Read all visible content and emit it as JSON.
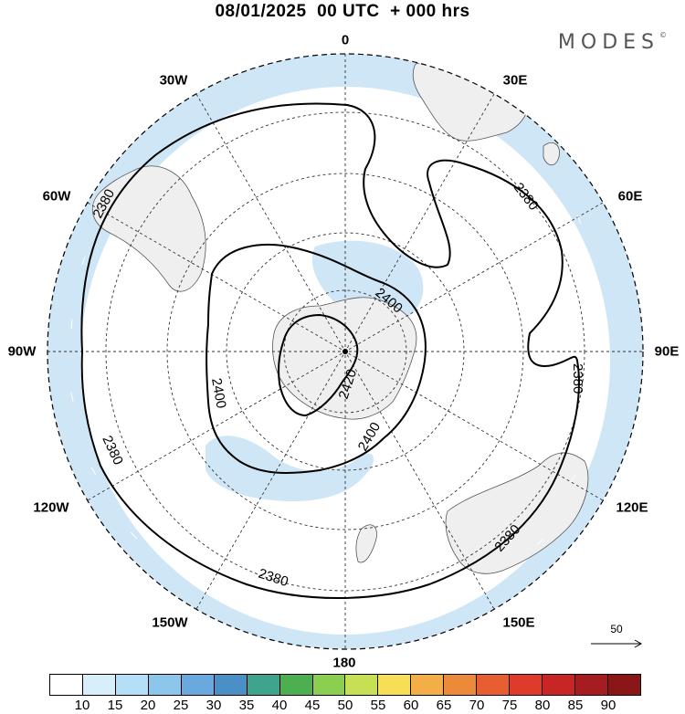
{
  "title": "08/01/2025  00 UTC  + 000 hrs",
  "brand": "MODES",
  "brand_mark": "©",
  "longitude_labels": [
    "0",
    "30E",
    "60E",
    "90E",
    "120E",
    "150E",
    "180",
    "150W",
    "120W",
    "90W",
    "60W",
    "30W"
  ],
  "contour_labels": [
    "2380",
    "2380",
    "2380",
    "2380",
    "2380",
    "2380",
    "2400",
    "2400",
    "2400",
    "2420"
  ],
  "reference_vector": {
    "value": "50"
  },
  "colorbar": {
    "labels": [
      "10",
      "15",
      "20",
      "25",
      "30",
      "35",
      "40",
      "45",
      "50",
      "55",
      "60",
      "65",
      "70",
      "75",
      "80",
      "85",
      "90"
    ],
    "colors": [
      "#ffffff",
      "#d8effb",
      "#b3e0f7",
      "#8cc6ea",
      "#6aa9dd",
      "#4a8fc6",
      "#3fa38d",
      "#4cb050",
      "#8ccf50",
      "#c6df54",
      "#f6de56",
      "#f3ae47",
      "#ec8a3a",
      "#e75e33",
      "#de3b2c",
      "#c82626",
      "#a51d21",
      "#8a1618"
    ]
  },
  "colors": {
    "jet_shading": "#cfe6f6",
    "land": "#efefef",
    "contour": "#000000"
  }
}
